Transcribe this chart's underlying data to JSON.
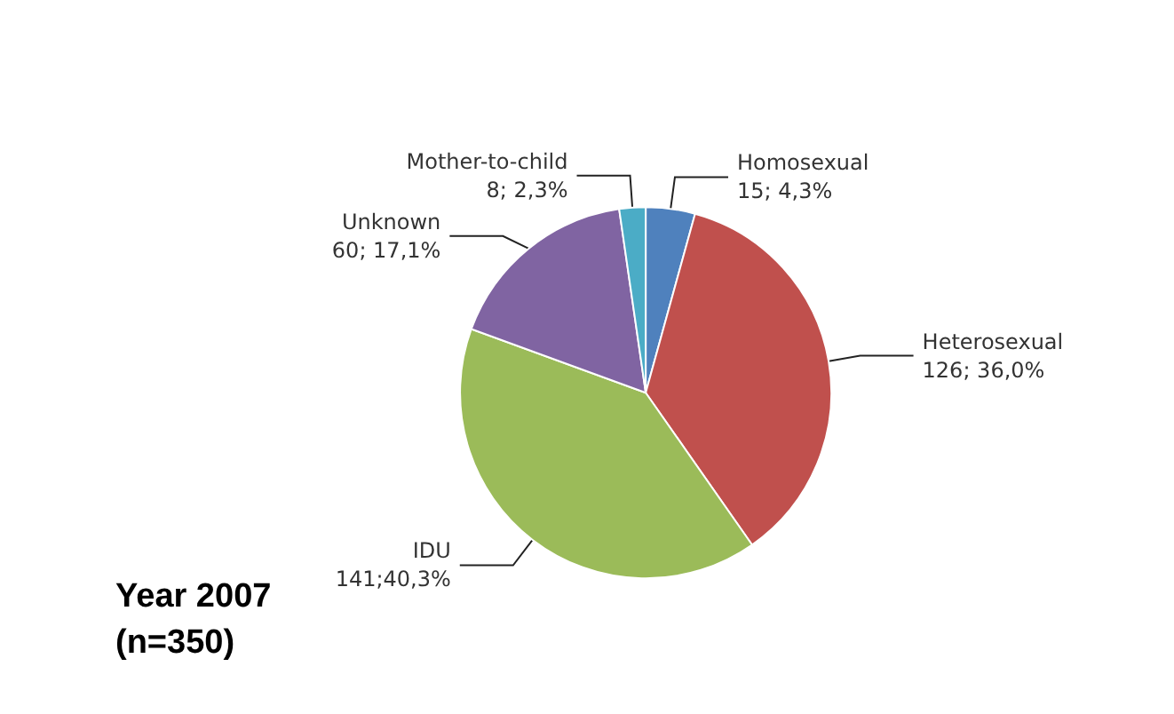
{
  "chart_data": {
    "type": "pie",
    "title": "Year 2007\n(n=350)",
    "categories": [
      "Homosexual",
      "Heterosexual",
      "IDU",
      "Unknown",
      "Mother-to-child"
    ],
    "values": [
      15,
      126,
      141,
      60,
      8
    ],
    "value_labels": [
      "15; 4,3%",
      "126; 36,0%",
      "141;40,3%",
      "60; 17,1%",
      "8; 2,3%"
    ],
    "colors": [
      "#4f81bd",
      "#c0504d",
      "#9bbb59",
      "#8064a2",
      "#4bacc6"
    ]
  }
}
